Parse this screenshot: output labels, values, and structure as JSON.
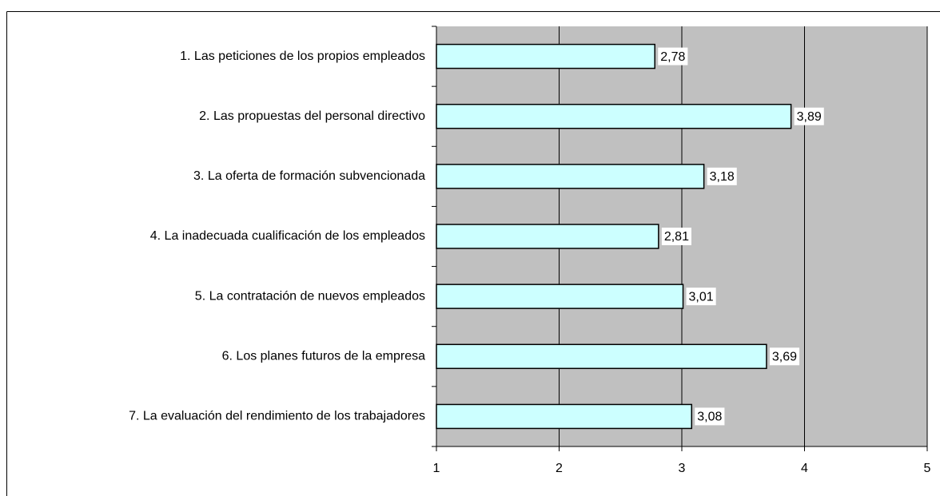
{
  "chart_data": {
    "type": "bar",
    "orientation": "horizontal",
    "categories": [
      "1. Las peticiones de los propios empleados",
      "2. Las propuestas del personal directivo",
      "3. La oferta de formación subvencionada",
      "4. La inadecuada cualificación de los empleados",
      "5. La contratación de nuevos empleados",
      "6. Los planes futuros de la empresa",
      "7. La evaluación del rendimiento de los trabajadores"
    ],
    "values": [
      2.78,
      3.89,
      3.18,
      2.81,
      3.01,
      3.69,
      3.08
    ],
    "value_labels": [
      "2,78",
      "3,89",
      "3,18",
      "2,81",
      "3,01",
      "3,69",
      "3,08"
    ],
    "color": "#ccffff",
    "xlim": [
      1,
      5
    ],
    "xticks": [
      1,
      2,
      3,
      4,
      5
    ],
    "grid": true
  }
}
